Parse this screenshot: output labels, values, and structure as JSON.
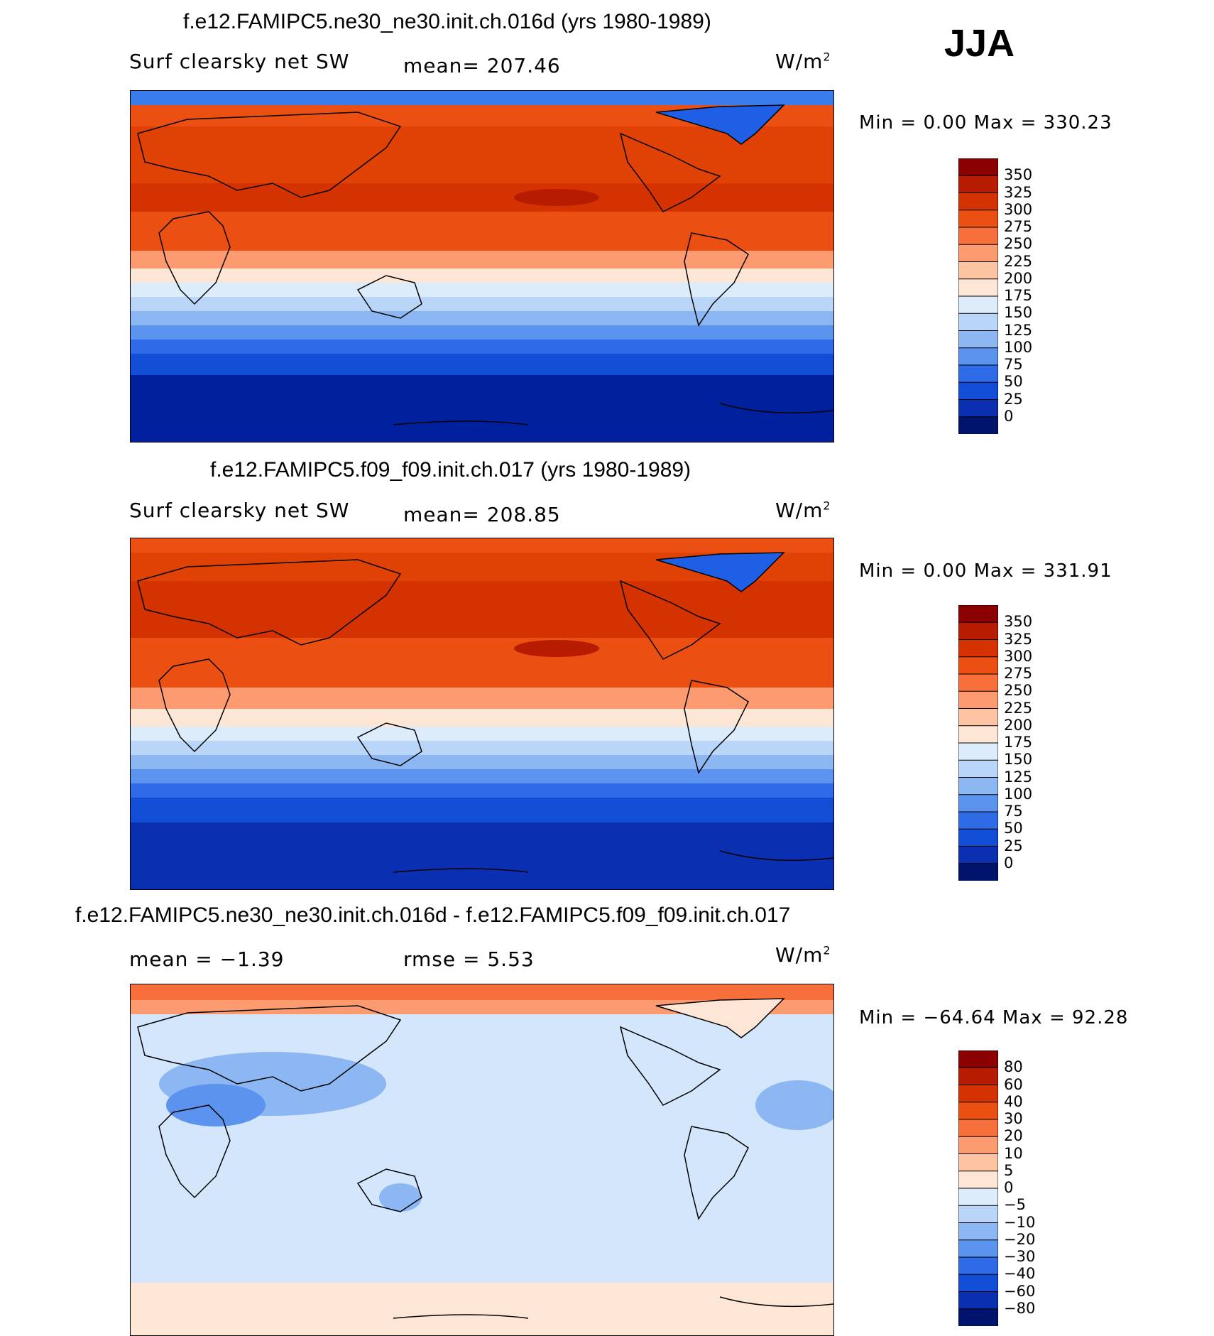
{
  "figure": {
    "season": "JJA"
  },
  "panels": [
    {
      "title": "f.e12.FAMIPC5.ne30_ne30.init.ch.016d (yrs 1980-1989)",
      "variable": "Surf clearsky net SW",
      "stat_text": "mean=  207.46",
      "units": "W/m",
      "units_sup": "2",
      "minmax": "Min  =     0.00  Max  =  330.23"
    },
    {
      "title": "f.e12.FAMIPC5.f09_f09.init.ch.017 (yrs 1980-1989)",
      "variable": "Surf clearsky net SW",
      "stat_text": "mean=  208.85",
      "units": "W/m",
      "units_sup": "2",
      "minmax": "Min  =     0.00  Max  =  331.91"
    },
    {
      "title": "f.e12.FAMIPC5.ne30_ne30.init.ch.016d - f.e12.FAMIPC5.f09_f09.init.ch.017",
      "variable": "mean  =   −1.39",
      "stat_text": "rmse  =     5.53",
      "units": "W/m",
      "units_sup": "2",
      "minmax": "Min  =  −64.64  Max  =   92.28"
    }
  ],
  "chart_data": [
    {
      "type": "heatmap",
      "title": "f.e12.FAMIPC5.ne30_ne30.init.ch.016d (yrs 1980-1989)",
      "variable": "Surf clearsky net SW",
      "units": "W/m2",
      "mean": 207.46,
      "min": 0.0,
      "max": 330.23,
      "colorbar_levels": [
        "350",
        "325",
        "300",
        "275",
        "250",
        "225",
        "200",
        "175",
        "150",
        "125",
        "100",
        "75",
        "50",
        "25",
        "0"
      ],
      "colorbar_colors": [
        "#8b0000",
        "#b71c00",
        "#d43200",
        "#ec4f12",
        "#f76f3a",
        "#fc9a70",
        "#fdc4a4",
        "#fde6d6",
        "#dcecfb",
        "#b9d5f8",
        "#8cb7f3",
        "#5b93ee",
        "#2f6be6",
        "#124dd6",
        "#0a2fb0",
        "#00146e"
      ]
    },
    {
      "type": "heatmap",
      "title": "f.e12.FAMIPC5.f09_f09.init.ch.017 (yrs 1980-1989)",
      "variable": "Surf clearsky net SW",
      "units": "W/m2",
      "mean": 208.85,
      "min": 0.0,
      "max": 331.91,
      "colorbar_levels": [
        "350",
        "325",
        "300",
        "275",
        "250",
        "225",
        "200",
        "175",
        "150",
        "125",
        "100",
        "75",
        "50",
        "25",
        "0"
      ],
      "colorbar_colors": [
        "#8b0000",
        "#b71c00",
        "#d43200",
        "#ec4f12",
        "#f76f3a",
        "#fc9a70",
        "#fdc4a4",
        "#fde6d6",
        "#dcecfb",
        "#b9d5f8",
        "#8cb7f3",
        "#5b93ee",
        "#2f6be6",
        "#124dd6",
        "#0a2fb0",
        "#00146e"
      ]
    },
    {
      "type": "heatmap",
      "title": "f.e12.FAMIPC5.ne30_ne30.init.ch.016d - f.e12.FAMIPC5.f09_f09.init.ch.017",
      "units": "W/m2",
      "mean": -1.39,
      "rmse": 5.53,
      "min": -64.64,
      "max": 92.28,
      "colorbar_levels": [
        "80",
        "60",
        "40",
        "30",
        "20",
        "10",
        "5",
        "0",
        "−5",
        "−10",
        "−20",
        "−30",
        "−40",
        "−60",
        "−80"
      ],
      "colorbar_colors": [
        "#8b0000",
        "#b71c00",
        "#d43200",
        "#ec4f12",
        "#f76f3a",
        "#fc9a70",
        "#fdc4a4",
        "#fde6d6",
        "#dcecfb",
        "#b9d5f8",
        "#8cb7f3",
        "#5b93ee",
        "#2f6be6",
        "#124dd6",
        "#0a2fb0",
        "#00146e"
      ]
    }
  ]
}
